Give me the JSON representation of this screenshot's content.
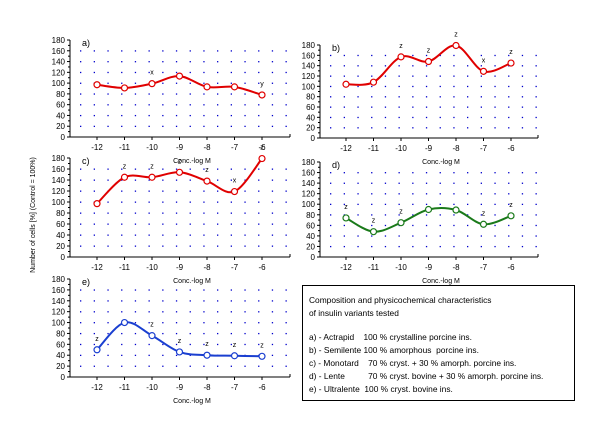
{
  "chart_data": [
    {
      "type": "line",
      "panel": "a)",
      "x": [
        -12,
        -11,
        -10,
        -9,
        -8,
        -7,
        -6
      ],
      "values": [
        97,
        91,
        99,
        113,
        93,
        93,
        78
      ],
      "annotations": [
        "",
        "",
        "x",
        "",
        "",
        "",
        "y"
      ],
      "color": "#e00000",
      "xlabel": "Conc.-log M",
      "ylim": [
        0,
        180
      ],
      "yticks": [
        0,
        20,
        40,
        60,
        80,
        100,
        120,
        140,
        160,
        180
      ],
      "xticks": [
        "-12",
        "-11",
        "-10",
        "-9",
        "-8",
        "-7",
        "-6"
      ],
      "grid": true
    },
    {
      "type": "line",
      "panel": "b)",
      "x": [
        -12,
        -11,
        -10,
        -9,
        -8,
        -7,
        -6
      ],
      "values": [
        104,
        108,
        157,
        148,
        179,
        129,
        145
      ],
      "annotations": [
        "",
        "",
        "z",
        "z",
        "z",
        "x",
        "z"
      ],
      "color": "#e00000",
      "xlabel": "Conc.-log M",
      "ylim": [
        0,
        180
      ],
      "yticks": [
        0,
        20,
        40,
        60,
        80,
        100,
        120,
        140,
        160,
        180
      ],
      "xticks": [
        "-12",
        "-11",
        "-10",
        "-9",
        "-8",
        "-7",
        "-6"
      ],
      "grid": true
    },
    {
      "type": "line",
      "panel": "c)",
      "x": [
        -12,
        -11,
        -10,
        -9,
        -8,
        -7,
        -6
      ],
      "values": [
        97,
        145,
        145,
        154,
        138,
        119,
        179
      ],
      "annotations": [
        "",
        "z",
        "z",
        "z",
        "z",
        "x",
        "z"
      ],
      "color": "#e00000",
      "xlabel": "Conc.-log M",
      "ylim": [
        0,
        180
      ],
      "yticks": [
        0,
        20,
        40,
        60,
        80,
        100,
        120,
        140,
        160,
        180
      ],
      "xticks": [
        "-12",
        "-11",
        "-10",
        "-9",
        "-8",
        "-7",
        "-6"
      ],
      "grid": true
    },
    {
      "type": "line",
      "panel": "d)",
      "x": [
        -12,
        -11,
        -10,
        -9,
        -8,
        -7,
        -6
      ],
      "values": [
        74,
        48,
        65,
        90,
        89,
        62,
        78
      ],
      "annotations": [
        "z",
        "z",
        "z",
        "",
        "",
        "z",
        "z"
      ],
      "color": "#1a7a1a",
      "xlabel": "Conc.-log M",
      "ylim": [
        0,
        180
      ],
      "yticks": [
        0,
        20,
        40,
        60,
        80,
        100,
        120,
        140,
        160,
        180
      ],
      "xticks": [
        "-12",
        "-11",
        "-10",
        "-9",
        "-8",
        "-7",
        "-6"
      ],
      "grid": true
    },
    {
      "type": "line",
      "panel": "e)",
      "x": [
        -12,
        -11,
        -10,
        -9,
        -8,
        -7,
        -6
      ],
      "values": [
        50,
        100,
        76,
        46,
        40,
        39,
        38
      ],
      "annotations": [
        "z",
        "",
        "z",
        "z",
        "z",
        "z",
        "z"
      ],
      "color": "#1a3fd0",
      "xlabel": "Conc.-log M",
      "ylim": [
        0,
        180
      ],
      "yticks": [
        0,
        20,
        40,
        60,
        80,
        100,
        120,
        140,
        160,
        180
      ],
      "xticks": [
        "-12",
        "-11",
        "-10",
        "-9",
        "-8",
        "-7",
        "-6"
      ],
      "grid": true
    }
  ],
  "ylabel": "Number of cells [%] (Control = 100%)",
  "grid_color": "#0000cc",
  "legend": {
    "title_line1": "Composition and physicochemical characteristics",
    "title_line2": "of insulin variants tested",
    "entries": [
      "a) - Actrapid    100 % crystalline porcine ins.",
      "b) - Semilente 100 % amorphous  porcine ins.",
      "c) - Monotard    70 % cryst. + 30 % amorph. porcine ins.",
      "d) - Lente          70 % cryst. bovine + 30 % amorph. porcine ins.",
      "e) - Ultralente  100 % cryst. bovine ins."
    ]
  }
}
